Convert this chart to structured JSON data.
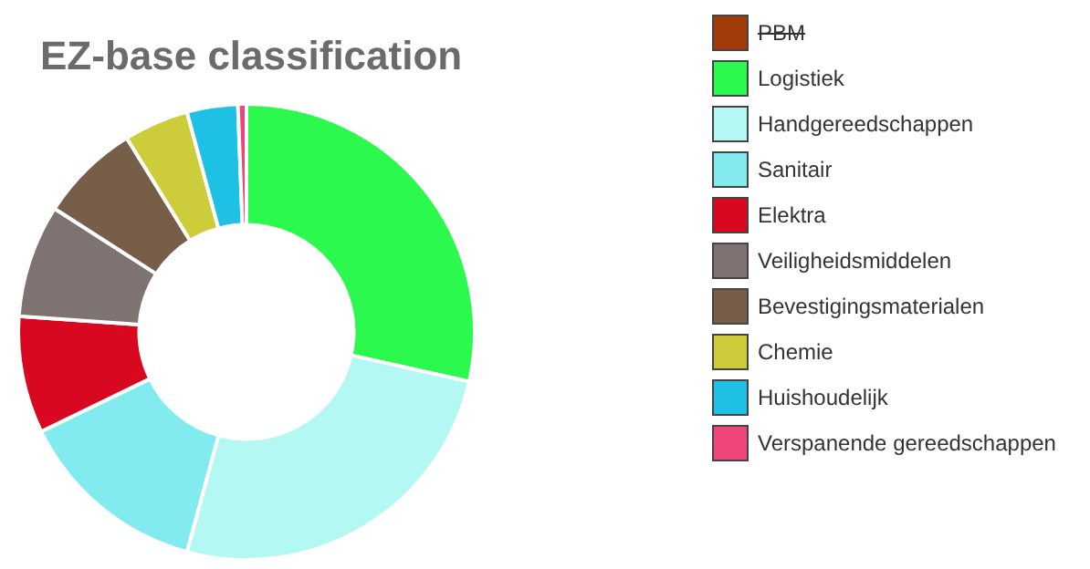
{
  "chart_data": {
    "type": "donut",
    "title": "EZ-base classification",
    "categories": [
      "PBM",
      "Logistiek",
      "Handgereedschappen",
      "Sanitair",
      "Elektra",
      "Veiligheidsmiddelen",
      "Bevestigingsmaterialen",
      "Chemie",
      "Huishoudelijk",
      "Verspanende gereedschappen"
    ],
    "values": [
      null,
      28.5,
      25.7,
      13.6,
      8.3,
      8.0,
      7.1,
      4.6,
      3.6,
      0.6
    ],
    "colors": [
      "#a33a0a",
      "#2cf94e",
      "#b3f8f2",
      "#82ebef",
      "#d7081f",
      "#7f7372",
      "#775e48",
      "#cdcd3c",
      "#1ec0e3",
      "#f0457a"
    ],
    "legend": "right"
  }
}
